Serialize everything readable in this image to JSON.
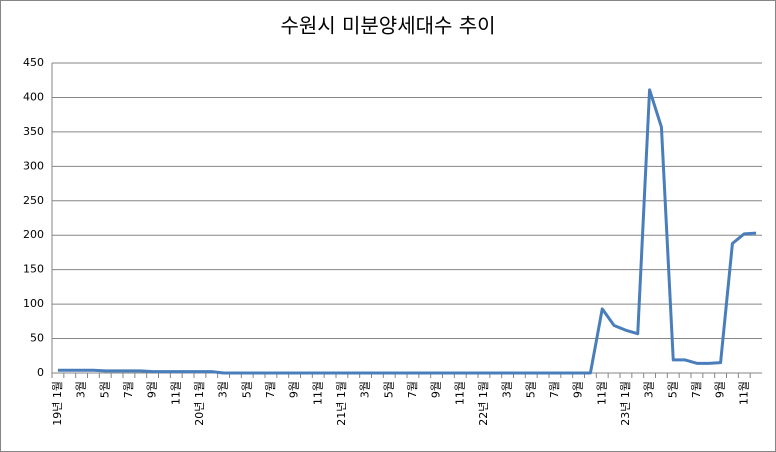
{
  "chart_data": {
    "type": "line",
    "title": "수원시 미분양세대수 추이",
    "categories": [
      "19년 1월",
      null,
      "3월",
      null,
      "5월",
      null,
      "7월",
      null,
      "9월",
      null,
      "11월",
      null,
      "20년 1월",
      null,
      "3월",
      null,
      "5월",
      null,
      "7월",
      null,
      "9월",
      null,
      "11월",
      null,
      "21년 1월",
      null,
      "3월",
      null,
      "5월",
      null,
      "7월",
      null,
      "9월",
      null,
      "11월",
      null,
      "22년 1월",
      null,
      "3월",
      null,
      "5월",
      null,
      "7월",
      null,
      "9월",
      null,
      "11월",
      null,
      "23년 1월",
      null,
      "3월",
      null,
      "5월",
      null,
      "7월",
      null,
      "9월",
      null,
      "11월",
      null
    ],
    "values": [
      4,
      4,
      4,
      4,
      3,
      3,
      3,
      3,
      2,
      2,
      2,
      2,
      2,
      2,
      0,
      0,
      0,
      0,
      0,
      0,
      0,
      0,
      0,
      0,
      0,
      0,
      0,
      0,
      0,
      0,
      0,
      0,
      0,
      0,
      0,
      0,
      0,
      0,
      0,
      0,
      0,
      0,
      0,
      0,
      0,
      0,
      93,
      69,
      62,
      57,
      411,
      357,
      19,
      19,
      14,
      14,
      15,
      188,
      202,
      203
    ],
    "color": "#4a7ebb",
    "ylim": [
      0,
      450
    ],
    "yticks": [
      0,
      50,
      100,
      150,
      200,
      250,
      300,
      350,
      400,
      450
    ],
    "grid": true
  }
}
